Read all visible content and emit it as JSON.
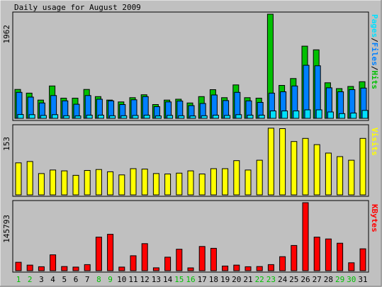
{
  "title": "Daily usage for August 2009",
  "colors": {
    "hits": "#00c000",
    "files": "#0080ff",
    "pages": "#00e0ff",
    "visits": "#ffff00",
    "kbytes": "#ff0000",
    "weekday_label": "#000000",
    "weekend_label": "#00c000",
    "background": "#c0c0c0"
  },
  "chart_data": [
    {
      "type": "bar",
      "panel": "hits-files-pages",
      "x": [
        1,
        2,
        3,
        4,
        5,
        6,
        7,
        8,
        9,
        10,
        11,
        12,
        13,
        14,
        15,
        16,
        17,
        18,
        19,
        20,
        21,
        22,
        23,
        24,
        25,
        26,
        27,
        28,
        29,
        30,
        31
      ],
      "weekend_days": [
        1,
        2,
        8,
        9,
        15,
        16,
        22,
        23,
        29,
        30
      ],
      "ymax_label": "1962",
      "ylim": [
        0,
        1962
      ],
      "legend": [
        "Pages",
        "Files",
        "Hits"
      ],
      "series": [
        {
          "name": "Hits",
          "values": [
            545,
            475,
            345,
            610,
            380,
            380,
            545,
            410,
            345,
            310,
            390,
            445,
            260,
            345,
            360,
            290,
            410,
            540,
            390,
            630,
            390,
            380,
            1962,
            620,
            750,
            1360,
            1290,
            670,
            560,
            600,
            690
          ]
        },
        {
          "name": "Files",
          "values": [
            490,
            400,
            290,
            430,
            330,
            265,
            430,
            360,
            330,
            260,
            350,
            410,
            220,
            310,
            325,
            240,
            280,
            440,
            335,
            490,
            330,
            300,
            475,
            500,
            610,
            1000,
            990,
            575,
            500,
            540,
            570
          ]
        },
        {
          "name": "Pages",
          "values": [
            72,
            70,
            55,
            70,
            50,
            45,
            60,
            60,
            50,
            50,
            55,
            60,
            45,
            55,
            50,
            45,
            50,
            60,
            55,
            70,
            60,
            60,
            140,
            140,
            140,
            160,
            160,
            120,
            90,
            100,
            150
          ]
        }
      ]
    },
    {
      "type": "bar",
      "panel": "visits",
      "x": [
        1,
        2,
        3,
        4,
        5,
        6,
        7,
        8,
        9,
        10,
        11,
        12,
        13,
        14,
        15,
        16,
        17,
        18,
        19,
        20,
        21,
        22,
        23,
        24,
        25,
        26,
        27,
        28,
        29,
        30,
        31
      ],
      "ymax_label": "153",
      "ylim": [
        0,
        153
      ],
      "legend": [
        "Visits"
      ],
      "series": [
        {
          "name": "Visits",
          "values": [
            72,
            75,
            48,
            56,
            54,
            44,
            55,
            57,
            52,
            45,
            59,
            58,
            48,
            47,
            49,
            54,
            47,
            59,
            59,
            77,
            56,
            78,
            150,
            149,
            120,
            127,
            113,
            94,
            86,
            78,
            127
          ]
        }
      ]
    },
    {
      "type": "bar",
      "panel": "kbytes",
      "x": [
        1,
        2,
        3,
        4,
        5,
        6,
        7,
        8,
        9,
        10,
        11,
        12,
        13,
        14,
        15,
        16,
        17,
        18,
        19,
        20,
        21,
        22,
        23,
        24,
        25,
        26,
        27,
        28,
        29,
        30,
        31
      ],
      "ymax_label": "145793",
      "ylim": [
        0,
        145793
      ],
      "legend": [
        "KBytes"
      ],
      "series": [
        {
          "name": "KBytes",
          "values": [
            18000,
            12000,
            8500,
            34000,
            9000,
            7800,
            13000,
            72000,
            78000,
            7800,
            32000,
            58000,
            6200,
            29000,
            46000,
            6100,
            52000,
            48000,
            10000,
            12000,
            8500,
            9000,
            13000,
            30000,
            54000,
            145793,
            72000,
            68000,
            59000,
            17000,
            47000
          ]
        }
      ]
    }
  ]
}
